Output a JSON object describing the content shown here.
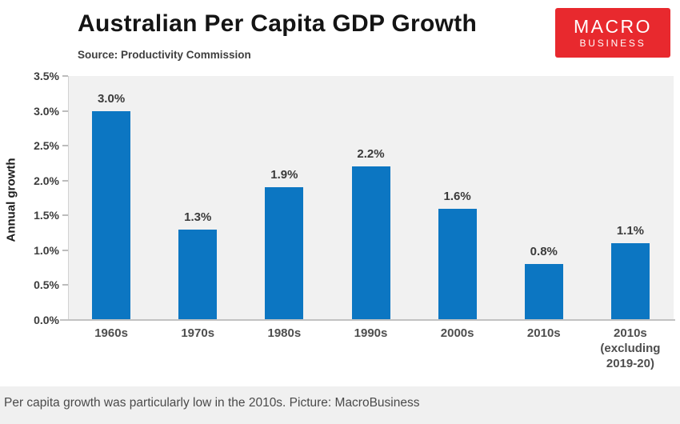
{
  "page": {
    "title": "Australian Per Capita GDP Growth",
    "source": "Source: Productivity Commission",
    "caption": "Per capita growth was particularly low in the 2010s. Picture: MacroBusiness"
  },
  "logo": {
    "line1": "MACRO",
    "line2": "BUSINESS",
    "bg_color": "#e8292e",
    "text_color": "#ffffff"
  },
  "chart_data": {
    "type": "bar",
    "title": "Australian Per Capita GDP Growth",
    "subtitle": "Source: Productivity Commission",
    "categories": [
      "1960s",
      "1970s",
      "1980s",
      "1990s",
      "2000s",
      "2010s",
      "2010s (excluding 2019-20)"
    ],
    "values": [
      3.0,
      1.3,
      1.9,
      2.2,
      1.6,
      0.8,
      1.1
    ],
    "data_labels": [
      "3.0%",
      "1.3%",
      "1.9%",
      "2.2%",
      "1.6%",
      "0.8%",
      "1.1%"
    ],
    "xlabel": "",
    "ylabel": "Annual growth",
    "ylim": [
      0,
      3.5
    ],
    "ytick_step": 0.5,
    "ytick_labels": [
      "0.0%",
      "0.5%",
      "1.0%",
      "1.5%",
      "2.0%",
      "2.5%",
      "3.0%",
      "3.5%"
    ],
    "grid": false,
    "legend": false,
    "bar_color": "#0c76c2",
    "plot_bg": "#f1f1f1",
    "caption_bg": "#f0f0f0"
  }
}
